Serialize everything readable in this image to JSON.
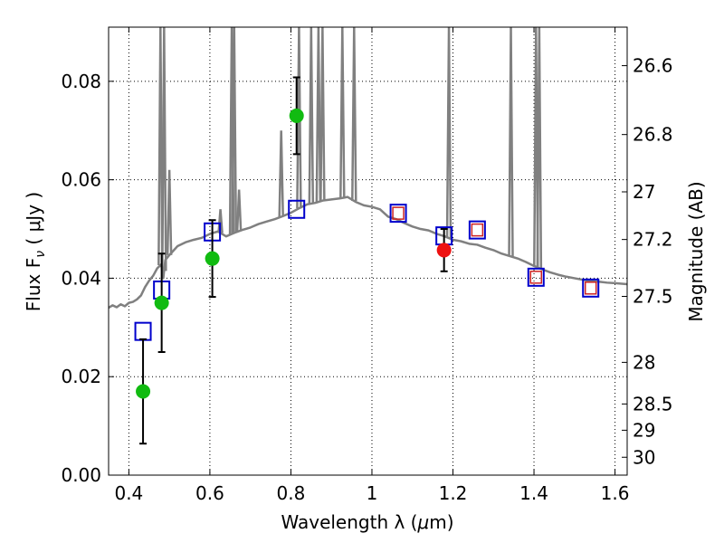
{
  "chart_data": {
    "type": "scatter",
    "title": "",
    "xlabel_prefix": "Wavelength  λ (",
    "xlabel_mu": "μ",
    "xlabel_suffix": "m)",
    "ylabel_prefix": "Flux  F",
    "ylabel_sub": "ν",
    "ylabel_suffix": "  ( μJy )",
    "y2label": "Magnitude (AB)",
    "xlim": [
      0.35,
      1.63
    ],
    "ylim": [
      0.0,
      0.091
    ],
    "grid": true,
    "xticks": [
      0.4,
      0.6,
      0.8,
      1.0,
      1.2,
      1.4,
      1.6
    ],
    "xtick_labels": [
      "0.4",
      "0.6",
      "0.8",
      "1",
      "1.2",
      "1.4",
      "1.6"
    ],
    "yticks": [
      0.0,
      0.02,
      0.04,
      0.06,
      0.08
    ],
    "ytick_labels": [
      "0.00",
      "0.02",
      "0.04",
      "0.06",
      "0.08"
    ],
    "mag_ticks": [
      26.6,
      26.8,
      27.0,
      27.2,
      27.5,
      28.0,
      28.5,
      29.0,
      30.0
    ],
    "mag_tick_labels": [
      "26.6",
      "26.8",
      "27",
      "27.2",
      "27.5",
      "28",
      "28.5",
      "29",
      "30"
    ],
    "colors": {
      "model": "#808080",
      "model_box": "#0000cc",
      "inner_box": "#cc2222",
      "hst": "#11bb11",
      "ground": "#ee1111",
      "errorbar": "#000000"
    },
    "observed": [
      {
        "x": 0.435,
        "y": 0.017,
        "err": 0.0106,
        "color": "hst"
      },
      {
        "x": 0.481,
        "y": 0.035,
        "err": 0.01,
        "color": "hst"
      },
      {
        "x": 0.606,
        "y": 0.044,
        "err": 0.0078,
        "color": "hst"
      },
      {
        "x": 0.814,
        "y": 0.073,
        "err": 0.0078,
        "color": "hst"
      },
      {
        "x": 1.178,
        "y": 0.0457,
        "err": 0.0043,
        "color": "ground"
      }
    ],
    "model_points": [
      {
        "x": 0.435,
        "y": 0.0292,
        "inner": false
      },
      {
        "x": 0.481,
        "y": 0.0376,
        "inner": false
      },
      {
        "x": 0.606,
        "y": 0.0494,
        "inner": false
      },
      {
        "x": 0.814,
        "y": 0.054,
        "inner": false
      },
      {
        "x": 1.065,
        "y": 0.0532,
        "inner": true
      },
      {
        "x": 1.178,
        "y": 0.0486,
        "inner": false
      },
      {
        "x": 1.26,
        "y": 0.0498,
        "inner": true
      },
      {
        "x": 1.405,
        "y": 0.0402,
        "inner": true
      },
      {
        "x": 1.54,
        "y": 0.038,
        "inner": true
      }
    ],
    "spectrum": [
      [
        0.35,
        0.034
      ],
      [
        0.36,
        0.0345
      ],
      [
        0.37,
        0.0341
      ],
      [
        0.38,
        0.0347
      ],
      [
        0.39,
        0.0343
      ],
      [
        0.4,
        0.035
      ],
      [
        0.41,
        0.0352
      ],
      [
        0.42,
        0.0357
      ],
      [
        0.43,
        0.0365
      ],
      [
        0.44,
        0.0382
      ],
      [
        0.45,
        0.0395
      ],
      [
        0.46,
        0.0405
      ],
      [
        0.47,
        0.042
      ],
      [
        0.48,
        0.0428
      ],
      [
        0.485,
        0.04
      ],
      [
        0.49,
        0.0437
      ],
      [
        0.5,
        0.0447
      ],
      [
        0.52,
        0.0465
      ],
      [
        0.54,
        0.0473
      ],
      [
        0.56,
        0.0478
      ],
      [
        0.58,
        0.0482
      ],
      [
        0.6,
        0.049
      ],
      [
        0.62,
        0.0495
      ],
      [
        0.64,
        0.0485
      ],
      [
        0.66,
        0.0492
      ],
      [
        0.68,
        0.0498
      ],
      [
        0.7,
        0.0503
      ],
      [
        0.72,
        0.051
      ],
      [
        0.74,
        0.0515
      ],
      [
        0.76,
        0.052
      ],
      [
        0.78,
        0.0526
      ],
      [
        0.8,
        0.0533
      ],
      [
        0.82,
        0.0542
      ],
      [
        0.84,
        0.055
      ],
      [
        0.86,
        0.0553
      ],
      [
        0.88,
        0.0558
      ],
      [
        0.9,
        0.056
      ],
      [
        0.92,
        0.0562
      ],
      [
        0.94,
        0.0565
      ],
      [
        0.96,
        0.0555
      ],
      [
        0.98,
        0.0548
      ],
      [
        1.0,
        0.0545
      ],
      [
        1.02,
        0.054
      ],
      [
        1.04,
        0.0525
      ],
      [
        1.06,
        0.052
      ],
      [
        1.08,
        0.0512
      ],
      [
        1.1,
        0.0505
      ],
      [
        1.12,
        0.05
      ],
      [
        1.14,
        0.0497
      ],
      [
        1.16,
        0.049
      ],
      [
        1.18,
        0.0485
      ],
      [
        1.2,
        0.0478
      ],
      [
        1.22,
        0.0475
      ],
      [
        1.24,
        0.047
      ],
      [
        1.26,
        0.0468
      ],
      [
        1.28,
        0.0462
      ],
      [
        1.3,
        0.0457
      ],
      [
        1.32,
        0.045
      ],
      [
        1.34,
        0.0445
      ],
      [
        1.36,
        0.044
      ],
      [
        1.38,
        0.0433
      ],
      [
        1.4,
        0.0425
      ],
      [
        1.42,
        0.0418
      ],
      [
        1.44,
        0.0412
      ],
      [
        1.46,
        0.0407
      ],
      [
        1.48,
        0.0403
      ],
      [
        1.5,
        0.04
      ],
      [
        1.52,
        0.0397
      ],
      [
        1.54,
        0.0394
      ],
      [
        1.56,
        0.0393
      ],
      [
        1.58,
        0.0391
      ],
      [
        1.6,
        0.039
      ],
      [
        1.63,
        0.0388
      ]
    ],
    "emission_lines": [
      [
        0.478,
        0.091
      ],
      [
        0.487,
        0.091
      ],
      [
        0.5,
        0.062
      ],
      [
        0.626,
        0.054
      ],
      [
        0.654,
        0.091
      ],
      [
        0.66,
        0.091
      ],
      [
        0.672,
        0.058
      ],
      [
        0.776,
        0.07
      ],
      [
        0.82,
        0.091
      ],
      [
        0.85,
        0.091
      ],
      [
        0.868,
        0.091
      ],
      [
        0.878,
        0.091
      ],
      [
        0.927,
        0.091
      ],
      [
        0.956,
        0.091
      ],
      [
        1.19,
        0.091
      ],
      [
        1.343,
        0.091
      ],
      [
        1.405,
        0.091
      ],
      [
        1.413,
        0.091
      ]
    ]
  }
}
